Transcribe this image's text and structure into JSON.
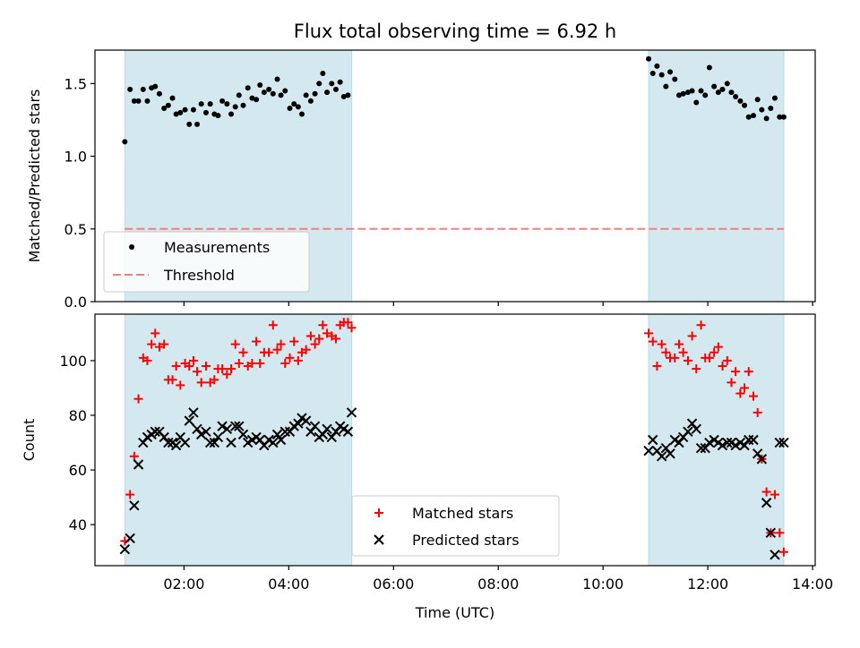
{
  "figure": {
    "title": "Flux total observing time = 6.92 h"
  },
  "chart_data": [
    {
      "type": "scatter",
      "panel": "top",
      "title": "Flux total observing time = 6.92 h",
      "xlabel": "",
      "ylabel": "Matched/Predicted stars",
      "xlim": [
        0.3,
        14.05
      ],
      "ylim": [
        0,
        1.73
      ],
      "yticks": [
        0.0,
        0.5,
        1.0,
        1.5
      ],
      "ytick_labels": [
        "0.0",
        "0.5",
        "1.0",
        "1.5"
      ],
      "grid": false,
      "legend_position": "lower-left",
      "shaded_intervals": [
        [
          0.87,
          5.2
        ],
        [
          10.87,
          13.45
        ]
      ],
      "shade_color": "#d4e9ef",
      "series": [
        {
          "name": "Measurements",
          "kind": "scatter",
          "marker": "dot",
          "color": "#000000",
          "x": [
            0.87,
            0.97,
            1.05,
            1.13,
            1.22,
            1.3,
            1.38,
            1.45,
            1.53,
            1.62,
            1.7,
            1.78,
            1.85,
            1.93,
            2.02,
            2.1,
            2.18,
            2.25,
            2.33,
            2.42,
            2.5,
            2.58,
            2.65,
            2.73,
            2.82,
            2.9,
            2.98,
            3.05,
            3.13,
            3.22,
            3.3,
            3.38,
            3.45,
            3.53,
            3.62,
            3.7,
            3.78,
            3.85,
            3.93,
            4.02,
            4.1,
            4.18,
            4.25,
            4.33,
            4.42,
            4.5,
            4.58,
            4.65,
            4.73,
            4.82,
            4.9,
            4.98,
            5.05,
            5.13,
            10.87,
            10.95,
            11.03,
            11.12,
            11.2,
            11.28,
            11.37,
            11.45,
            11.53,
            11.62,
            11.7,
            11.78,
            11.87,
            11.95,
            12.03,
            12.12,
            12.2,
            12.28,
            12.37,
            12.45,
            12.53,
            12.62,
            12.7,
            12.78,
            12.87,
            12.95,
            13.03,
            13.12,
            13.2,
            13.28,
            13.37,
            13.45
          ],
          "y": [
            1.1,
            1.46,
            1.38,
            1.38,
            1.46,
            1.38,
            1.47,
            1.48,
            1.43,
            1.33,
            1.35,
            1.4,
            1.29,
            1.3,
            1.32,
            1.22,
            1.32,
            1.22,
            1.36,
            1.3,
            1.36,
            1.29,
            1.28,
            1.38,
            1.36,
            1.29,
            1.34,
            1.42,
            1.35,
            1.47,
            1.4,
            1.39,
            1.49,
            1.44,
            1.46,
            1.43,
            1.53,
            1.42,
            1.45,
            1.33,
            1.36,
            1.34,
            1.29,
            1.42,
            1.38,
            1.43,
            1.5,
            1.57,
            1.44,
            1.5,
            1.46,
            1.51,
            1.41,
            1.42,
            1.67,
            1.57,
            1.62,
            1.56,
            1.48,
            1.58,
            1.53,
            1.42,
            1.43,
            1.44,
            1.45,
            1.37,
            1.45,
            1.42,
            1.61,
            1.48,
            1.44,
            1.46,
            1.5,
            1.44,
            1.41,
            1.38,
            1.35,
            1.27,
            1.28,
            1.39,
            1.32,
            1.26,
            1.33,
            1.4,
            1.27,
            1.27
          ]
        },
        {
          "name": "Threshold",
          "kind": "line",
          "dash": true,
          "color": "#f08080",
          "x": [
            0.87,
            13.45
          ],
          "y": [
            0.5,
            0.5
          ]
        }
      ]
    },
    {
      "type": "scatter",
      "panel": "bottom",
      "xlabel": "Time (UTC)",
      "ylabel": "Count",
      "xlim": [
        0.3,
        14.05
      ],
      "ylim": [
        25,
        117
      ],
      "xticks": [
        2,
        4,
        6,
        8,
        10,
        12,
        14
      ],
      "xtick_labels": [
        "02:00",
        "04:00",
        "06:00",
        "08:00",
        "10:00",
        "12:00",
        "14:00"
      ],
      "yticks": [
        40,
        60,
        80,
        100
      ],
      "ytick_labels": [
        "40",
        "60",
        "80",
        "100"
      ],
      "grid": false,
      "legend_position": "lower-center",
      "shaded_intervals": [
        [
          0.87,
          5.2
        ],
        [
          10.87,
          13.45
        ]
      ],
      "shade_color": "#d4e9ef",
      "series": [
        {
          "name": "Matched stars",
          "kind": "scatter",
          "marker": "plus",
          "color": "#ff0000",
          "x": [
            0.87,
            0.97,
            1.05,
            1.13,
            1.22,
            1.3,
            1.38,
            1.45,
            1.53,
            1.62,
            1.7,
            1.78,
            1.85,
            1.93,
            2.02,
            2.1,
            2.18,
            2.25,
            2.33,
            2.42,
            2.5,
            2.58,
            2.65,
            2.73,
            2.82,
            2.9,
            2.98,
            3.05,
            3.13,
            3.22,
            3.3,
            3.38,
            3.45,
            3.53,
            3.62,
            3.7,
            3.78,
            3.85,
            3.93,
            4.02,
            4.1,
            4.18,
            4.25,
            4.33,
            4.42,
            4.5,
            4.58,
            4.65,
            4.73,
            4.82,
            4.9,
            4.98,
            5.05,
            5.13,
            5.2,
            10.87,
            10.95,
            11.03,
            11.12,
            11.2,
            11.28,
            11.37,
            11.45,
            11.53,
            11.62,
            11.7,
            11.78,
            11.87,
            11.95,
            12.03,
            12.12,
            12.2,
            12.28,
            12.37,
            12.45,
            12.53,
            12.62,
            12.7,
            12.78,
            12.87,
            12.95,
            13.03,
            13.12,
            13.2,
            13.28,
            13.37,
            13.45
          ],
          "y": [
            34,
            51,
            65,
            86,
            101,
            100,
            106,
            110,
            105,
            106,
            93,
            93,
            98,
            91,
            99,
            98,
            100,
            96,
            92,
            98,
            92,
            93,
            97,
            97,
            95,
            97,
            106,
            99,
            103,
            98,
            99,
            107,
            99,
            103,
            103,
            113,
            104,
            106,
            99,
            101,
            107,
            100,
            103,
            104,
            109,
            106,
            108,
            113,
            110,
            109,
            108,
            113,
            114,
            114,
            112,
            110,
            107,
            98,
            106,
            103,
            101,
            101,
            106,
            103,
            100,
            109,
            97,
            113,
            101,
            101,
            103,
            105,
            98,
            100,
            92,
            96,
            88,
            90,
            96,
            87,
            81,
            64,
            52,
            37,
            51,
            37,
            30
          ],
          "note": ""
        },
        {
          "name": "Predicted stars",
          "kind": "scatter",
          "marker": "x",
          "color": "#000000",
          "x": [
            0.87,
            0.97,
            1.05,
            1.13,
            1.22,
            1.3,
            1.38,
            1.45,
            1.53,
            1.62,
            1.7,
            1.78,
            1.85,
            1.93,
            2.02,
            2.1,
            2.18,
            2.25,
            2.33,
            2.42,
            2.5,
            2.58,
            2.65,
            2.73,
            2.82,
            2.9,
            2.98,
            3.05,
            3.13,
            3.22,
            3.3,
            3.38,
            3.45,
            3.53,
            3.62,
            3.7,
            3.78,
            3.85,
            3.93,
            4.02,
            4.1,
            4.18,
            4.25,
            4.33,
            4.42,
            4.5,
            4.58,
            4.65,
            4.73,
            4.82,
            4.9,
            4.98,
            5.05,
            5.13,
            5.2,
            10.87,
            10.95,
            11.03,
            11.12,
            11.2,
            11.28,
            11.37,
            11.45,
            11.53,
            11.62,
            11.7,
            11.78,
            11.87,
            11.95,
            12.03,
            12.12,
            12.2,
            12.28,
            12.37,
            12.45,
            12.53,
            12.62,
            12.7,
            12.78,
            12.87,
            12.95,
            13.03,
            13.12,
            13.2,
            13.28,
            13.37,
            13.45
          ],
          "y": [
            31,
            35,
            47,
            62,
            70,
            72,
            73,
            74,
            74,
            72,
            70,
            70,
            69,
            72,
            70,
            78,
            81,
            75,
            73,
            74,
            70,
            70,
            72,
            76,
            75,
            70,
            76,
            76,
            73,
            70,
            71,
            72,
            71,
            69,
            71,
            70,
            73,
            71,
            74,
            74,
            76,
            77,
            79,
            78,
            74,
            76,
            72,
            73,
            75,
            72,
            74,
            76,
            75,
            74,
            81,
            67,
            71,
            67,
            65,
            68,
            66,
            71,
            70,
            72,
            74,
            77,
            75,
            68,
            68,
            70,
            71,
            70,
            69,
            70,
            70,
            69,
            70,
            69,
            71,
            71,
            66,
            64,
            48,
            37,
            29,
            70,
            70
          ],
          "note": ""
        }
      ]
    }
  ]
}
